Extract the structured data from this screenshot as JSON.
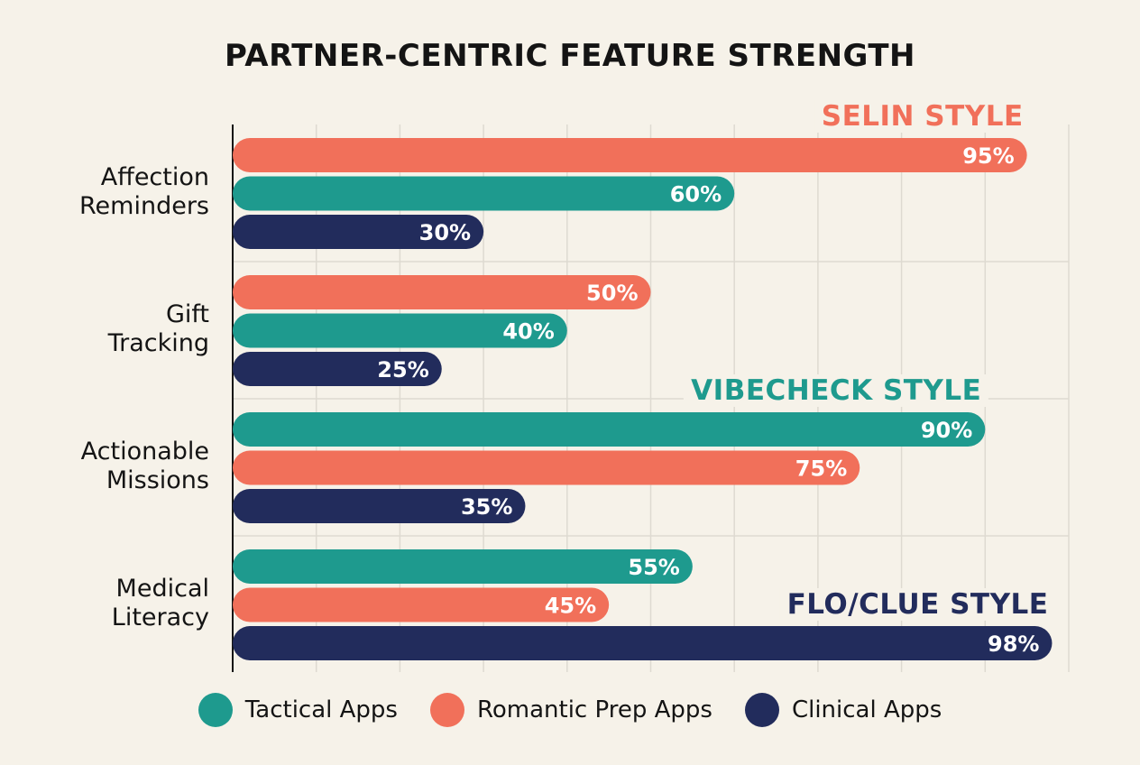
{
  "chart_data": {
    "type": "bar",
    "orientation": "horizontal",
    "title": "PARTNER-CENTRIC FEATURE STRENGTH",
    "xlim": [
      0,
      100
    ],
    "grid": true,
    "legend_position": "bottom",
    "series_meta": [
      {
        "name": "Tactical Apps",
        "color": "#1e9a8e"
      },
      {
        "name": "Romantic Prep Apps",
        "color": "#f1705a"
      },
      {
        "name": "Clinical Apps",
        "color": "#222c5c"
      }
    ],
    "categories": [
      {
        "label_lines": [
          "Affection",
          "Reminders"
        ],
        "bars": [
          {
            "series": "Romantic Prep Apps",
            "value": 95,
            "label": "95%"
          },
          {
            "series": "Tactical Apps",
            "value": 60,
            "label": "60%"
          },
          {
            "series": "Clinical Apps",
            "value": 30,
            "label": "30%"
          }
        ]
      },
      {
        "label_lines": [
          "Gift",
          "Tracking"
        ],
        "bars": [
          {
            "series": "Romantic Prep Apps",
            "value": 50,
            "label": "50%"
          },
          {
            "series": "Tactical Apps",
            "value": 40,
            "label": "40%"
          },
          {
            "series": "Clinical Apps",
            "value": 25,
            "label": "25%"
          }
        ]
      },
      {
        "label_lines": [
          "Actionable",
          "Missions"
        ],
        "bars": [
          {
            "series": "Tactical Apps",
            "value": 90,
            "label": "90%"
          },
          {
            "series": "Romantic Prep Apps",
            "value": 75,
            "label": "75%"
          },
          {
            "series": "Clinical Apps",
            "value": 35,
            "label": "35%"
          }
        ]
      },
      {
        "label_lines": [
          "Medical",
          "Literacy"
        ],
        "bars": [
          {
            "series": "Tactical Apps",
            "value": 55,
            "label": "55%"
          },
          {
            "series": "Romantic Prep Apps",
            "value": 45,
            "label": "45%"
          },
          {
            "series": "Clinical Apps",
            "value": 98,
            "label": "98%"
          }
        ]
      }
    ],
    "annotations": [
      {
        "text": "SELIN STYLE",
        "category": 0,
        "series": "Romantic Prep Apps"
      },
      {
        "text": "VIBECHECK STYLE",
        "category": 2,
        "series": "Tactical Apps"
      },
      {
        "text": "FLO/CLUE STYLE",
        "category": 3,
        "series": "Clinical Apps"
      }
    ]
  }
}
